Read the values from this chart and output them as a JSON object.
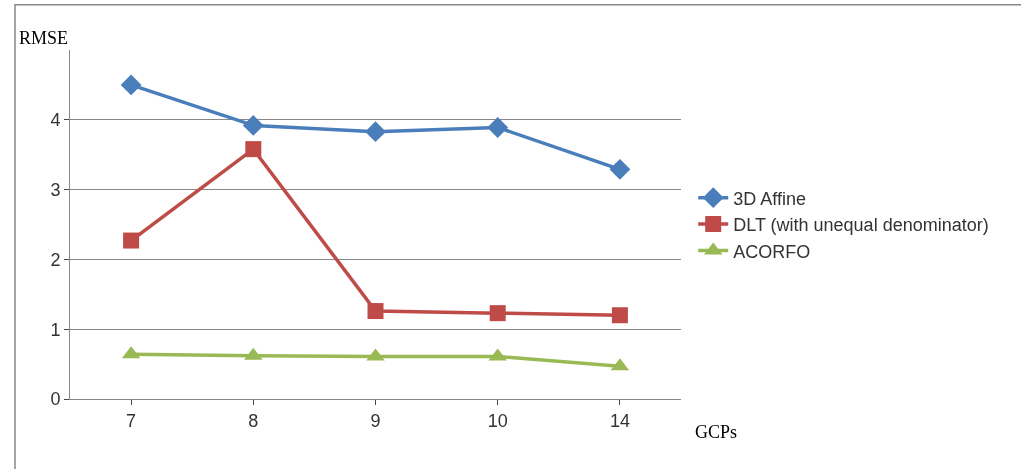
{
  "chart_data": {
    "type": "line",
    "xlabel": "GCPs",
    "ylabel": "RMSE",
    "categories": [
      "7",
      "8",
      "9",
      "10",
      "14"
    ],
    "series": [
      {
        "name": "3D Affine",
        "color": "#4a7ebb",
        "marker": "diamond",
        "values": [
          4.5,
          3.92,
          3.83,
          3.89,
          3.29
        ]
      },
      {
        "name": "DLT (with unequal denominator)",
        "color": "#be4b48",
        "marker": "square",
        "values": [
          2.27,
          3.58,
          1.26,
          1.23,
          1.2
        ]
      },
      {
        "name": "ACORFO",
        "color": "#98b954",
        "marker": "triangle",
        "values": [
          0.64,
          0.62,
          0.61,
          0.61,
          0.47
        ]
      }
    ],
    "ylim": [
      0,
      5
    ],
    "yticks": [
      0,
      1,
      2,
      3,
      4
    ],
    "grid": "y",
    "legend": "right"
  }
}
